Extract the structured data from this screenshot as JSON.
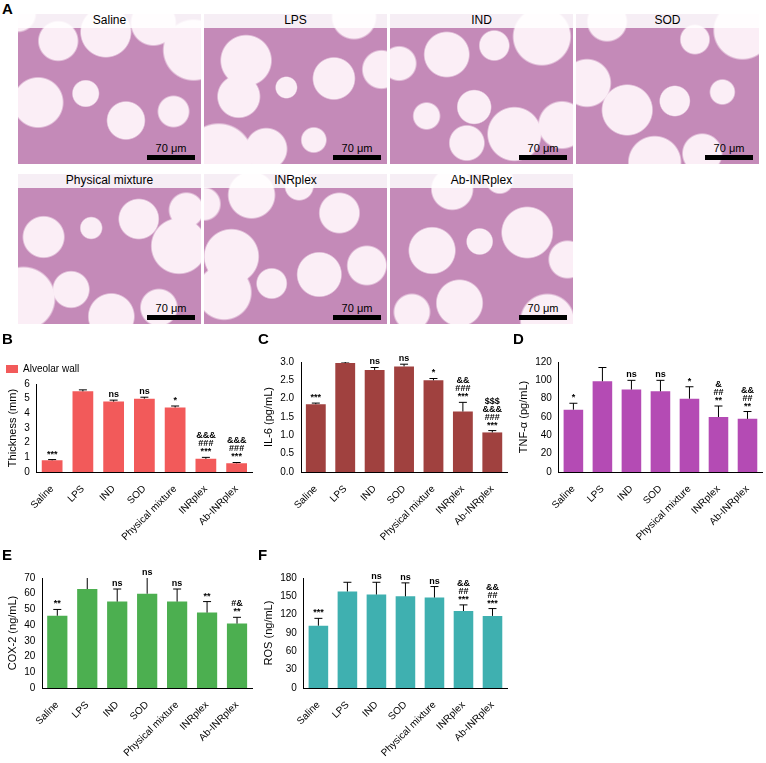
{
  "panel_a": {
    "label": "A",
    "images": [
      {
        "title": "Saline",
        "scale_bar": "70 μm"
      },
      {
        "title": "LPS",
        "scale_bar": "70 μm"
      },
      {
        "title": "IND",
        "scale_bar": "70 μm"
      },
      {
        "title": "SOD",
        "scale_bar": "70 μm"
      },
      {
        "title": "Physical mixture",
        "scale_bar": "70 μm"
      },
      {
        "title": "INRplex",
        "scale_bar": "70 μm"
      },
      {
        "title": "Ab-INRplex",
        "scale_bar": "70 μm"
      }
    ]
  },
  "chart_data": [
    {
      "panel_label": "B",
      "type": "bar",
      "categories": [
        "Saline",
        "LPS",
        "IND",
        "SOD",
        "Physical mixture",
        "INRplex",
        "Ab-INRplex"
      ],
      "series": [
        {
          "name": "Alveolar wall",
          "color": "#f25a5a",
          "values": [
            0.8,
            5.5,
            4.8,
            5.0,
            4.4,
            0.9,
            0.6
          ],
          "errors": [
            0.05,
            0.1,
            0.1,
            0.1,
            0.1,
            0.1,
            0.05
          ]
        }
      ],
      "y_label": "Thickness (mm)",
      "ylim": [
        0,
        6
      ],
      "yticks": [
        0,
        1,
        2,
        3,
        4,
        5,
        6
      ],
      "grid": false,
      "legend": "upper left",
      "annotations": [
        [
          "***"
        ],
        null,
        [
          "ns"
        ],
        [
          "ns"
        ],
        [
          "*"
        ],
        [
          "&&&",
          "###",
          "***"
        ],
        [
          "&&&",
          "###",
          "***"
        ]
      ]
    },
    {
      "panel_label": "C",
      "type": "bar",
      "categories": [
        "Saline",
        "LPS",
        "IND",
        "SOD",
        "Physical mixture",
        "INRplex",
        "Ab-INRplex"
      ],
      "values": [
        1.85,
        2.97,
        2.78,
        2.88,
        2.5,
        1.65,
        1.08
      ],
      "errors": [
        0.03,
        0.03,
        0.07,
        0.06,
        0.05,
        0.25,
        0.05
      ],
      "color": "#a0413f",
      "y_label": "IL-6 (pg/mL)",
      "ylim": [
        0,
        3
      ],
      "yticks": [
        {
          "value": 0,
          "label": "0.0"
        },
        0.5,
        {
          "value": 1,
          "label": "1.0"
        },
        1.5,
        {
          "value": 2,
          "label": "2.0"
        },
        2.5,
        {
          "value": 3,
          "label": "3.0"
        }
      ],
      "grid": false,
      "annotations": [
        [
          "***"
        ],
        null,
        [
          "ns"
        ],
        [
          "ns"
        ],
        [
          "*"
        ],
        [
          "&&",
          "###",
          "***"
        ],
        [
          "$$$",
          "&&&",
          "###",
          "***"
        ]
      ]
    },
    {
      "panel_label": "D",
      "type": "bar",
      "categories": [
        "Saline",
        "LPS",
        "IND",
        "SOD",
        "Physical mixture",
        "INRplex",
        "Ab-INRplex"
      ],
      "values": [
        68,
        99,
        90,
        88,
        80,
        60,
        58
      ],
      "errors": [
        7,
        15,
        10,
        12,
        13,
        12,
        8
      ],
      "color": "#b44bb4",
      "y_label": "TNF-α (pg/mL)",
      "ylim": [
        0,
        120
      ],
      "yticks": [
        0,
        20,
        40,
        60,
        80,
        100,
        120
      ],
      "grid": false,
      "annotations": [
        [
          "*"
        ],
        null,
        [
          "ns"
        ],
        [
          "ns"
        ],
        [
          "*"
        ],
        [
          "&",
          "##",
          "**"
        ],
        [
          "&&",
          "##",
          "**"
        ]
      ]
    },
    {
      "panel_label": "E",
      "type": "bar",
      "categories": [
        "Saline",
        "LPS",
        "IND",
        "SOD",
        "Physical mixture",
        "INRplex",
        "Ab-INRplex"
      ],
      "values": [
        46,
        63,
        55,
        60,
        55,
        48,
        41
      ],
      "errors": [
        4,
        9,
        8,
        12,
        8,
        7,
        4
      ],
      "color": "#4caf50",
      "y_label": "COX-2 (ng/mL)",
      "ylim": [
        0,
        70
      ],
      "yticks": [
        0,
        10,
        20,
        30,
        40,
        50,
        60,
        70
      ],
      "grid": false,
      "annotations": [
        [
          "**"
        ],
        null,
        [
          "ns"
        ],
        [
          "ns"
        ],
        [
          "ns"
        ],
        [
          "**"
        ],
        [
          "#&",
          "**"
        ]
      ]
    },
    {
      "panel_label": "F",
      "type": "bar",
      "categories": [
        "Saline",
        "LPS",
        "IND",
        "SOD",
        "Physical mixture",
        "INRplex",
        "Ab-INRplex"
      ],
      "values": [
        102,
        158,
        153,
        150,
        148,
        126,
        118
      ],
      "errors": [
        12,
        15,
        20,
        22,
        18,
        10,
        12
      ],
      "color": "#3fb0b0",
      "y_label": "ROS (ng/mL)",
      "ylim": [
        0,
        180
      ],
      "yticks": [
        0,
        30,
        60,
        90,
        120,
        150,
        180
      ],
      "grid": false,
      "annotations": [
        [
          "***"
        ],
        null,
        [
          "ns"
        ],
        [
          "ns"
        ],
        [
          "ns"
        ],
        [
          "&&",
          "##",
          "***"
        ],
        [
          "&&",
          "##",
          "***"
        ]
      ]
    }
  ]
}
